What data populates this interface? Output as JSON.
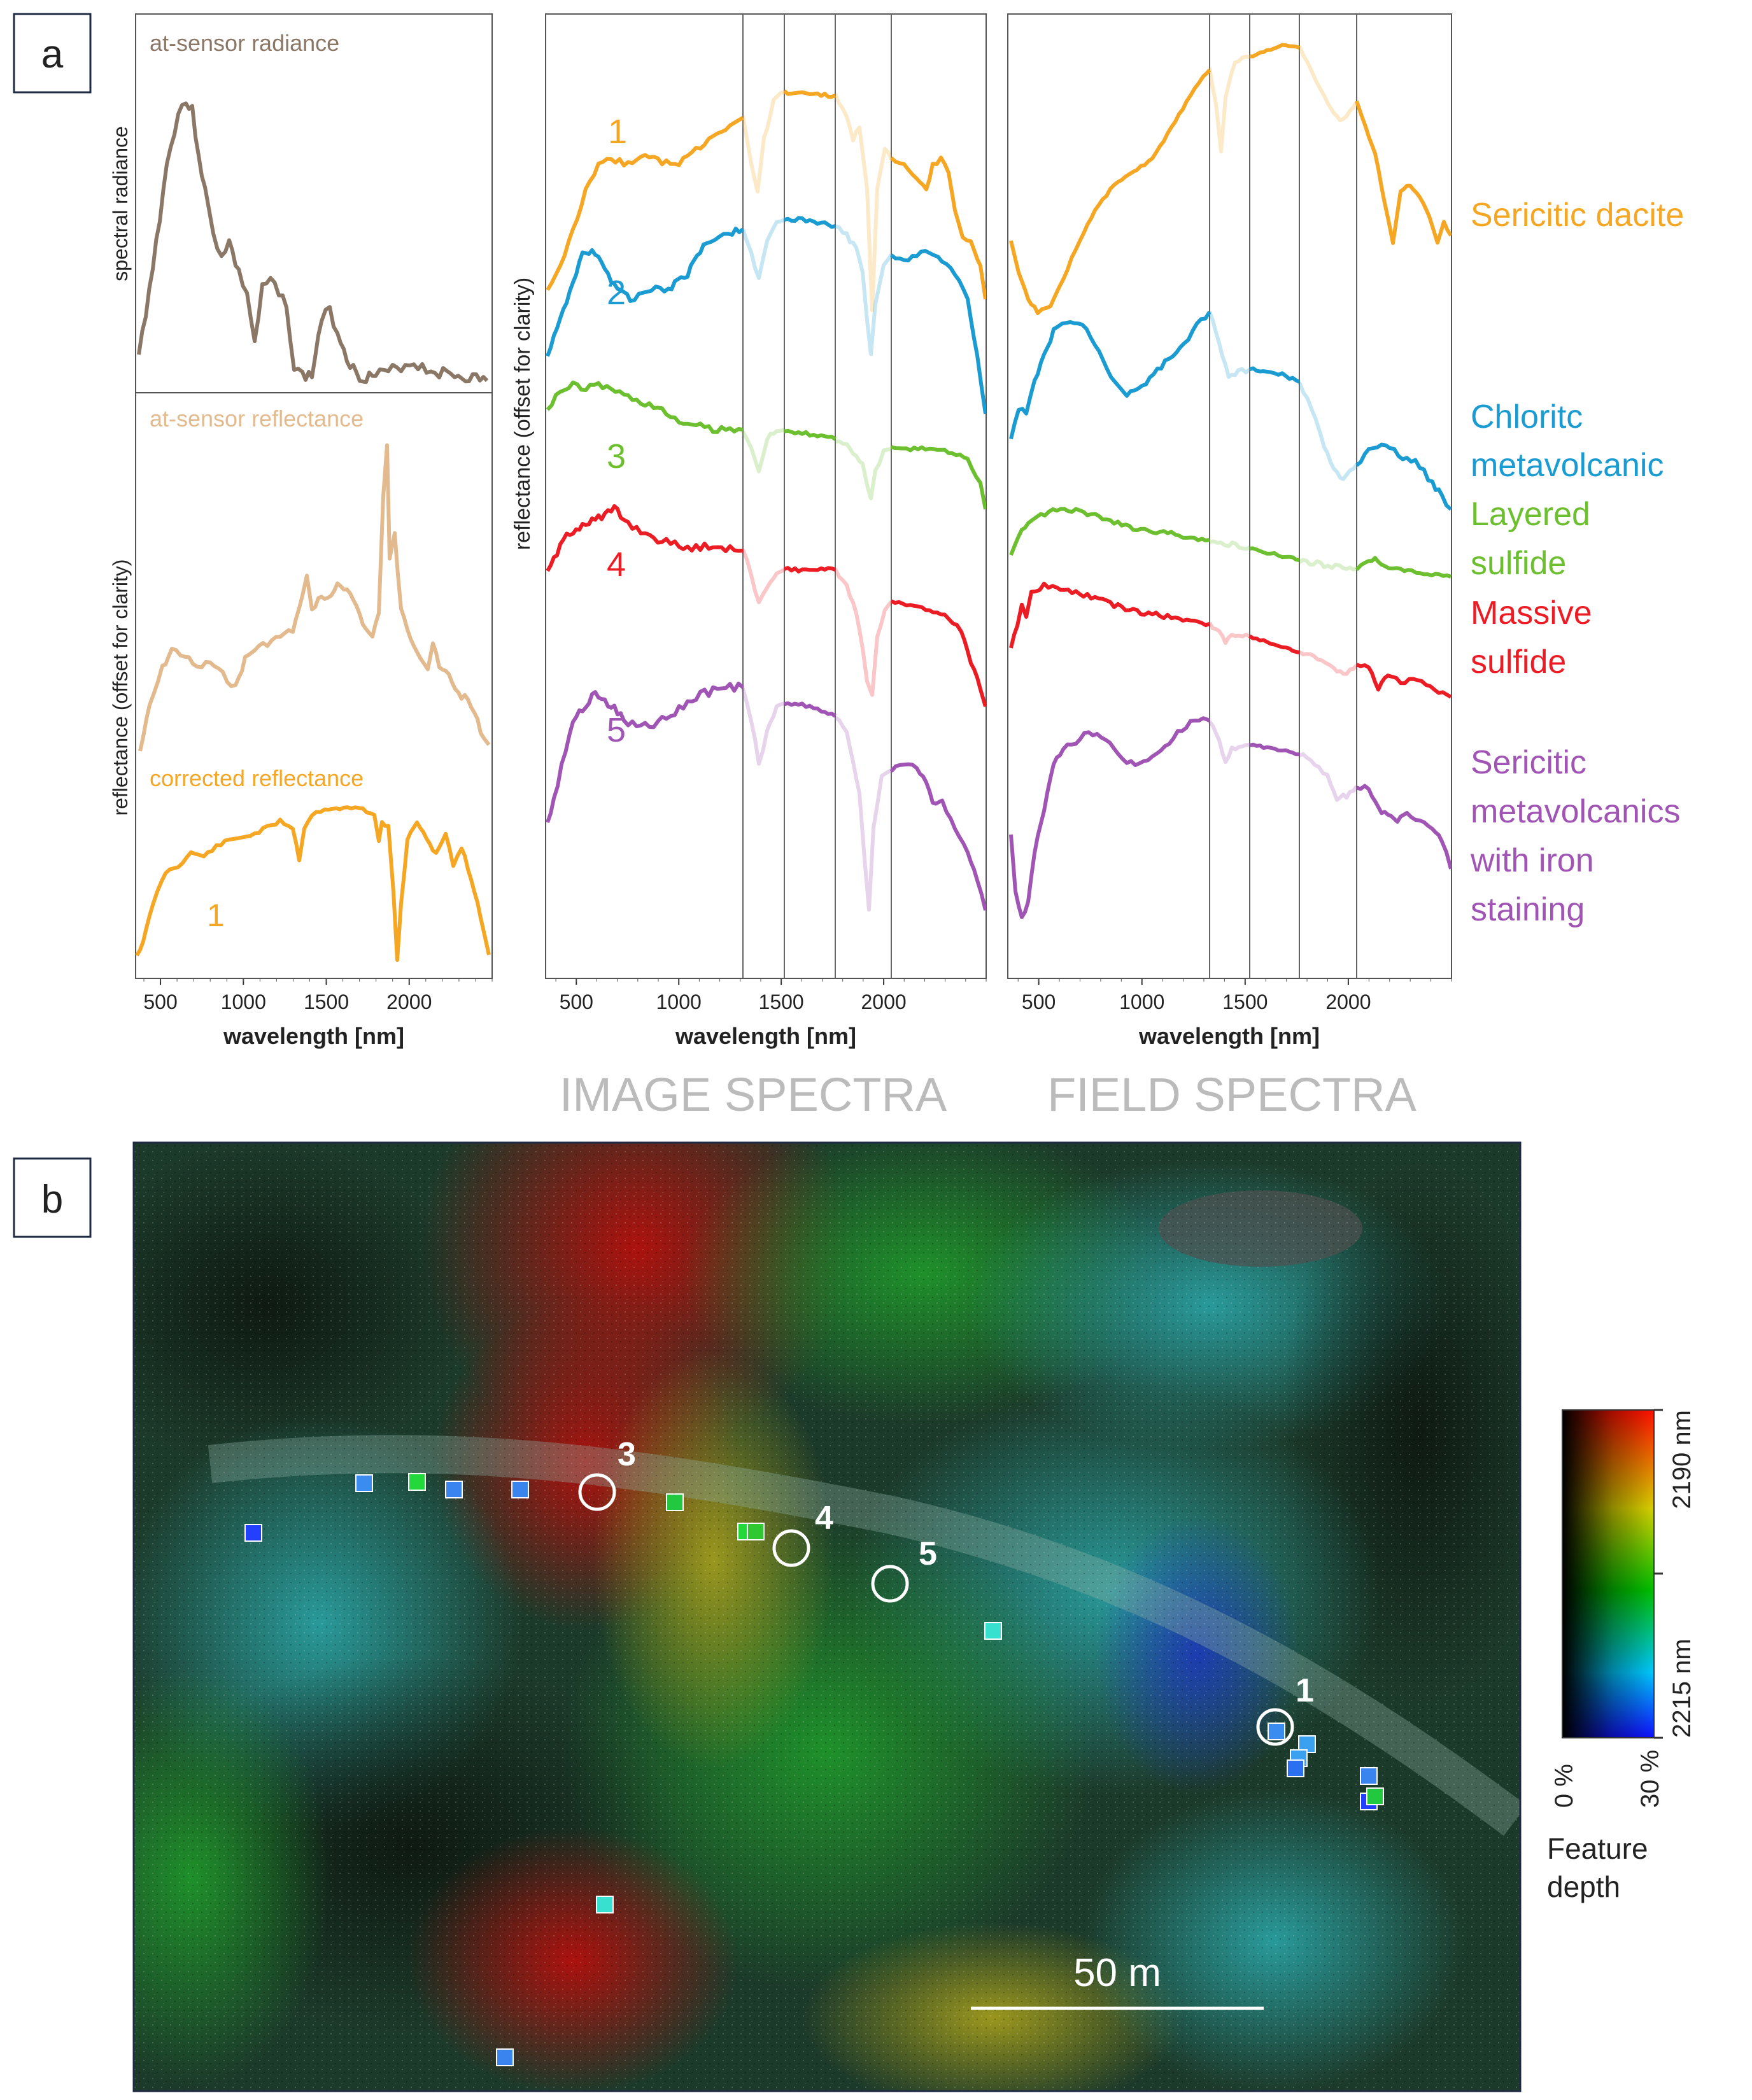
{
  "panel_a": {
    "label": "a",
    "left_top_title": "at-sensor radiance",
    "left_mid_title": "at-sensor reflectance",
    "left_bottom_title": "corrected reflectance",
    "left_top_ylabel": "spectral radiance",
    "left_bottom_ylabel": "reflectance (offset for clarity)",
    "mid_ylabel": "reflectance (offset for clarity)",
    "xlabel": "wavelength [nm]",
    "x_ticks": [
      "500",
      "1000",
      "1500",
      "2000"
    ],
    "curve_numbers": [
      "1",
      "2",
      "3",
      "4",
      "5"
    ],
    "corrected_number": "1",
    "image_title": "IMAGE SPECTRA",
    "field_title": "FIELD SPECTRA",
    "legend": [
      {
        "lines": [
          "Sericitic dacite"
        ],
        "color": "#f5a623"
      },
      {
        "lines": [
          "Chloritc",
          "metavolcanic"
        ],
        "color": "#1a9bd2"
      },
      {
        "lines": [
          "Layered",
          "sulfide"
        ],
        "color": "#6cbf2e"
      },
      {
        "lines": [
          "Massive",
          "sulfide"
        ],
        "color": "#ec1c24"
      },
      {
        "lines": [
          "Sericitic",
          "metavolcanics",
          "with iron",
          "staining"
        ],
        "color": "#a055b4"
      }
    ],
    "colors": {
      "radiance": "#8b7766",
      "at_sensor_reflectance": "#e3b98e",
      "corrected": "#f5a623",
      "c1": "#f5a623",
      "c2": "#1a9bd2",
      "c3": "#6cbf2e",
      "c4": "#ec1c24",
      "c5": "#a055b4"
    }
  },
  "panel_b": {
    "label": "b",
    "site_numbers": [
      "3",
      "4",
      "5",
      "1"
    ],
    "scale_bar_label": "50 m",
    "colorbar": {
      "top_label": "2190 nm",
      "bottom_label": "2215 nm",
      "left_label": "0 %",
      "right_label": "30 %",
      "caption_line1": "Feature",
      "caption_line2": "depth"
    }
  }
}
